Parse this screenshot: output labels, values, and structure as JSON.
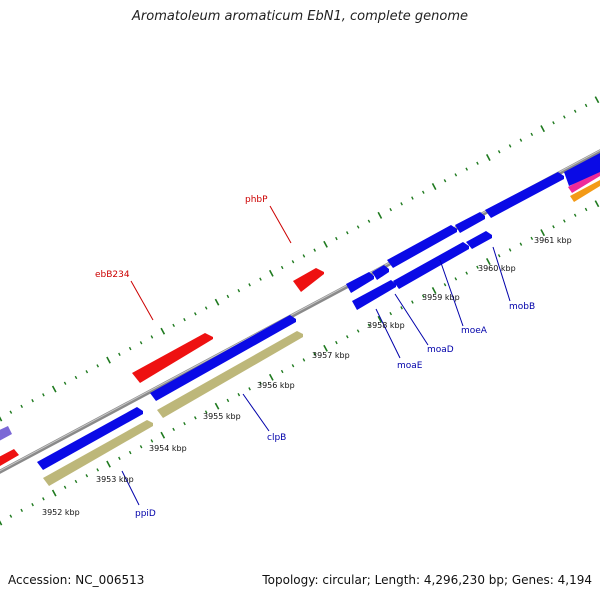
{
  "title": "Aromatoleum aromaticum EbN1, complete genome",
  "footer": {
    "accession": "Accession: NC_006513",
    "summary": "Topology: circular; Length: 4,296,230 bp; Genes: 4,194"
  },
  "colors": {
    "backbone": "#8a8a8a",
    "tick": "#1f7a1f",
    "gene_blue": "#0a0ae6",
    "gene_red": "#ee1111",
    "gene_khaki": "#bdb77a",
    "gene_purple": "#7b68d6",
    "gene_pink": "#ee2a9a",
    "gene_orange": "#f39a16",
    "label_red": "#cc0000",
    "label_blue": "#0000aa"
  },
  "scale_labels": [
    {
      "kbp": 3952,
      "label": "3952 kbp"
    },
    {
      "kbp": 3953,
      "label": "3953 kbp"
    },
    {
      "kbp": 3954,
      "label": "3954 kbp"
    },
    {
      "kbp": 3955,
      "label": "3955 kbp"
    },
    {
      "kbp": 3956,
      "label": "3956 kbp"
    },
    {
      "kbp": 3957,
      "label": "3957 kbp"
    },
    {
      "kbp": 3958,
      "label": "3958 kbp"
    },
    {
      "kbp": 3959,
      "label": "3959 kbp"
    },
    {
      "kbp": 3960,
      "label": "3960 kbp"
    },
    {
      "kbp": 3961,
      "label": "3961 kbp"
    }
  ],
  "gene_labels": [
    {
      "name": "ebB234",
      "color": "red"
    },
    {
      "name": "phbP",
      "color": "red"
    },
    {
      "name": "ppiD",
      "color": "blue"
    },
    {
      "name": "clpB",
      "color": "blue"
    },
    {
      "name": "moaE",
      "color": "blue"
    },
    {
      "name": "moaD",
      "color": "blue"
    },
    {
      "name": "moeA",
      "color": "blue"
    },
    {
      "name": "mobB",
      "color": "blue"
    }
  ]
}
